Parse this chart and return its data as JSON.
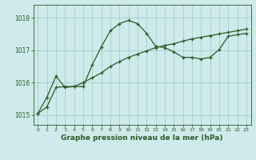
{
  "title": "Graphe pression niveau de la mer (hPa)",
  "xlim": [
    -0.5,
    23.5
  ],
  "ylim": [
    1014.7,
    1018.4
  ],
  "yticks": [
    1015,
    1016,
    1017,
    1018
  ],
  "xticks": [
    0,
    1,
    2,
    3,
    4,
    5,
    6,
    7,
    8,
    9,
    10,
    11,
    12,
    13,
    14,
    15,
    16,
    17,
    18,
    19,
    20,
    21,
    22,
    23
  ],
  "bg_color": "#ceeaea",
  "grid_color": "#a8cccc",
  "line_color": "#2d5a27",
  "line1_x": [
    0,
    1,
    2,
    3,
    4,
    5,
    6,
    7,
    8,
    9,
    10,
    11,
    12,
    13,
    14,
    15,
    16,
    17,
    18,
    19,
    20,
    21,
    22,
    23
  ],
  "line1_y": [
    1015.05,
    1015.55,
    1016.2,
    1015.85,
    1015.88,
    1015.88,
    1016.55,
    1017.1,
    1017.6,
    1017.82,
    1017.92,
    1017.82,
    1017.52,
    1017.12,
    1017.08,
    1016.95,
    1016.78,
    1016.78,
    1016.73,
    1016.78,
    1017.02,
    1017.43,
    1017.48,
    1017.52
  ],
  "line2_x": [
    0,
    1,
    2,
    3,
    4,
    5,
    6,
    7,
    8,
    9,
    10,
    11,
    12,
    13,
    14,
    15,
    16,
    17,
    18,
    19,
    20,
    21,
    22,
    23
  ],
  "line2_y": [
    1015.05,
    1015.25,
    1015.85,
    1015.88,
    1015.88,
    1016.0,
    1016.15,
    1016.3,
    1016.5,
    1016.65,
    1016.78,
    1016.88,
    1016.98,
    1017.08,
    1017.15,
    1017.2,
    1017.28,
    1017.35,
    1017.4,
    1017.45,
    1017.5,
    1017.55,
    1017.6,
    1017.65
  ],
  "tick_fontsize": 5.5,
  "xlabel_fontsize": 6.5,
  "linewidth": 0.9,
  "markersize": 3.5
}
